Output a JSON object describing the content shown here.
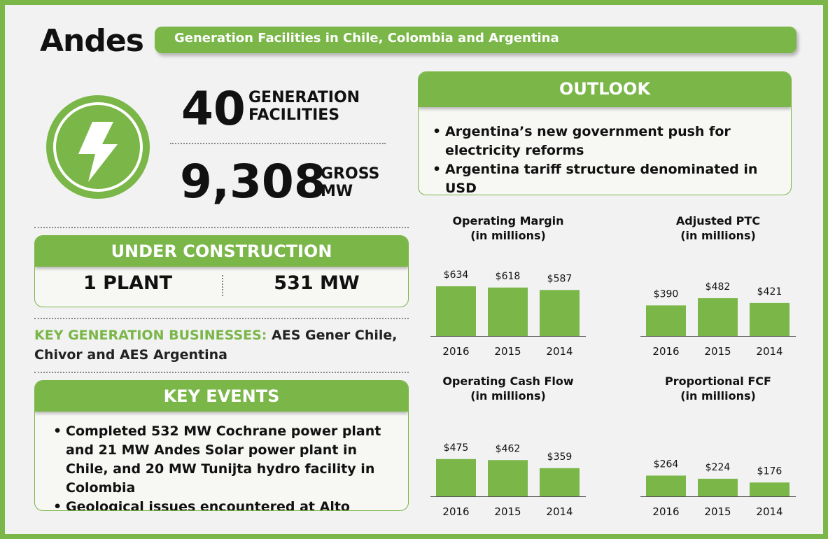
{
  "header": {
    "brand": "Andes",
    "banner": "Generation Facilities in Chile, Colombia and Argentina"
  },
  "icon": "lightning-bolt-icon",
  "stats": {
    "facilities_count": "40",
    "facilities_label_1": "GENERATION",
    "facilities_label_2": "FACILITIES",
    "gross_mw": "9,308",
    "gross_label_1": "GROSS",
    "gross_label_2": "MW"
  },
  "under_construction": {
    "title": "UNDER CONSTRUCTION",
    "plants": "1 PLANT",
    "capacity": "531 MW"
  },
  "key_generation": {
    "label": "KEY GENERATION BUSINESSES:",
    "text": " AES Gener Chile, Chivor and AES Argentina"
  },
  "key_events": {
    "title": "KEY EVENTS",
    "items": [
      "Completed 532 MW Cochrane power plant and 21 MW Andes Solar power plant in Chile, and 20 MW Tunijta hydro facility in Colombia",
      "Geological issues encountered at Alto Maipo"
    ]
  },
  "outlook": {
    "title": "OUTLOOK",
    "items": [
      "Argentina’s new government push for electricity reforms",
      "Argentina tariff structure denominated in USD"
    ]
  },
  "colors": {
    "accent": "#7ab648",
    "background": "#f2f2f2"
  },
  "chart_data": [
    {
      "type": "bar",
      "title": "Operating Margin",
      "subtitle": "(in millions)",
      "categories": [
        "2016",
        "2015",
        "2014"
      ],
      "values": [
        634,
        618,
        587
      ],
      "labels": [
        "$634",
        "$618",
        "$587"
      ]
    },
    {
      "type": "bar",
      "title": "Adjusted PTC",
      "subtitle": "(in millions)",
      "categories": [
        "2016",
        "2015",
        "2014"
      ],
      "values": [
        390,
        482,
        421
      ],
      "labels": [
        "$390",
        "$482",
        "$421"
      ]
    },
    {
      "type": "bar",
      "title": "Operating Cash Flow",
      "subtitle": "(in millions)",
      "categories": [
        "2016",
        "2015",
        "2014"
      ],
      "values": [
        475,
        462,
        359
      ],
      "labels": [
        "$475",
        "$462",
        "$359"
      ]
    },
    {
      "type": "bar",
      "title": "Proportional FCF",
      "subtitle": "(in millions)",
      "categories": [
        "2016",
        "2015",
        "2014"
      ],
      "values": [
        264,
        224,
        176
      ],
      "labels": [
        "$264",
        "$224",
        "$176"
      ]
    }
  ]
}
